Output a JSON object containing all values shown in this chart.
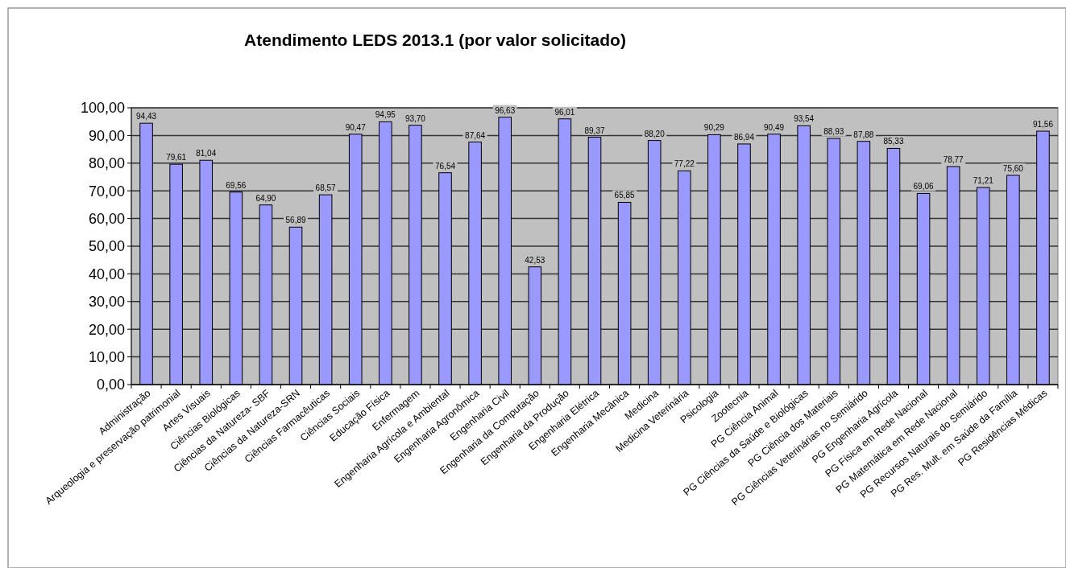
{
  "chart_data": {
    "type": "bar",
    "title": "Atendimento LEDS 2013.1 (por valor solicitado)",
    "categories": [
      "Administração",
      "Arqueologia e preservação patrimonial",
      "Artes Visuais",
      "Ciências Biológicas",
      "Ciências da Natureza- SBF",
      "Ciências da Natureza-SRN",
      "Ciências Farmacêuticas",
      "Ciências Sociais",
      "Educação Física",
      "Enfermagem",
      "Engenharia Agrícola e Ambiental",
      "Engenharia Agronômica",
      "Engenharia Civil",
      "Engenharia da Computação",
      "Engenharia da Produção",
      "Engenharia Elétrica",
      "Engenharia Mecânica",
      "Medicina",
      "Medicina Veterinária",
      "Psicologia",
      "Zootecnia",
      "PG Ciência Animal",
      "PG Ciências da Saúde e Biológicas",
      "PG Ciência dos Materiais",
      "PG Ciências Veterinárias no Semiárido",
      "PG Engenharia Agrícola",
      "PG Física em Rede Nacional",
      "PG Matemática em Rede Nacional",
      "PG Recursos Naturais do Semiárido",
      "PG Res. Mult. em Saúde da Família",
      "PG Residências Médicas"
    ],
    "values": [
      94.43,
      79.61,
      81.04,
      69.56,
      64.9,
      56.89,
      68.57,
      90.47,
      94.95,
      93.7,
      76.54,
      87.64,
      96.63,
      42.53,
      96.01,
      89.37,
      65.85,
      88.2,
      77.22,
      90.29,
      86.94,
      90.49,
      93.54,
      88.93,
      87.88,
      85.33,
      69.06,
      78.77,
      71.21,
      75.6,
      91.56
    ],
    "value_labels": [
      "94,43",
      "79,61",
      "81,04",
      "69,56",
      "64,90",
      "56,89",
      "68,57",
      "90,47",
      "94,95",
      "93,70",
      "76,54",
      "87,64",
      "96,63",
      "42,53",
      "96,01",
      "89,37",
      "65,85",
      "88,20",
      "77,22",
      "90,29",
      "86,94",
      "90,49",
      "93,54",
      "88,93",
      "87,88",
      "85,33",
      "69,06",
      "78,77",
      "71,21",
      "75,60",
      "91,56"
    ],
    "color": "#9999ff",
    "ylim": [
      0,
      100
    ],
    "yticks": [
      {
        "value": 0,
        "label": "0,00"
      },
      {
        "value": 10,
        "label": "10,00"
      },
      {
        "value": 20,
        "label": "20,00"
      },
      {
        "value": 30,
        "label": "30,00"
      },
      {
        "value": 40,
        "label": "40,00"
      },
      {
        "value": 50,
        "label": "50,00"
      },
      {
        "value": 60,
        "label": "60,00"
      },
      {
        "value": 70,
        "label": "70,00"
      },
      {
        "value": 80,
        "label": "80,00"
      },
      {
        "value": 90,
        "label": "90,00"
      },
      {
        "value": 100,
        "label": "100,00"
      }
    ],
    "grid": "y"
  }
}
